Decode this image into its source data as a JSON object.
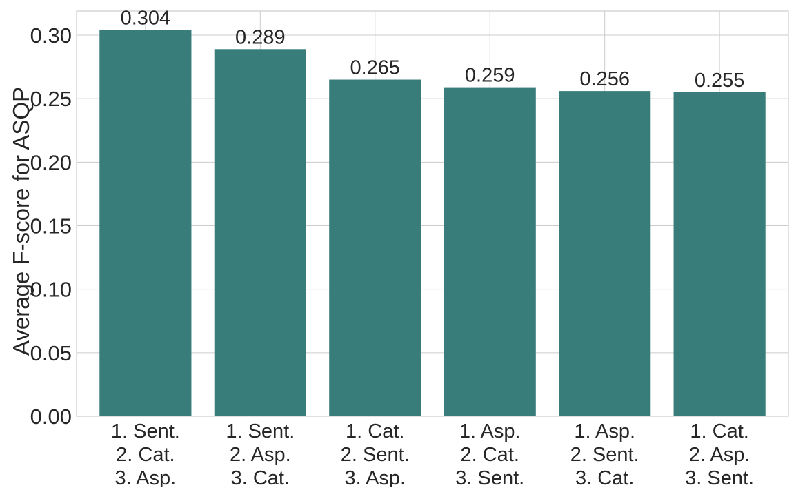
{
  "chart_data": {
    "type": "bar",
    "title": "",
    "xlabel": "",
    "ylabel": "Average F-score for ASQP",
    "categories": [
      [
        "1. Sent.",
        "2. Cat.",
        "3. Asp."
      ],
      [
        "1. Sent.",
        "2. Asp.",
        "3. Cat."
      ],
      [
        "1. Cat.",
        "2. Sent.",
        "3. Asp."
      ],
      [
        "1. Asp.",
        "2. Cat.",
        "3. Sent."
      ],
      [
        "1. Asp.",
        "2. Sent.",
        "3. Cat."
      ],
      [
        "1. Cat.",
        "2. Asp.",
        "3. Sent."
      ]
    ],
    "values": [
      0.304,
      0.289,
      0.265,
      0.259,
      0.256,
      0.255
    ],
    "value_labels": [
      "0.304",
      "0.289",
      "0.265",
      "0.259",
      "0.256",
      "0.255"
    ],
    "ylim": [
      0,
      0.319
    ],
    "yticks": [
      0.0,
      0.05,
      0.1,
      0.15,
      0.2,
      0.25,
      0.3
    ],
    "ytick_labels": [
      "0.00",
      "0.05",
      "0.10",
      "0.15",
      "0.20",
      "0.25",
      "0.30"
    ],
    "grid": true,
    "bar_color": "#387d7a",
    "grid_color": "#cccccc",
    "text_color": "#262626"
  }
}
